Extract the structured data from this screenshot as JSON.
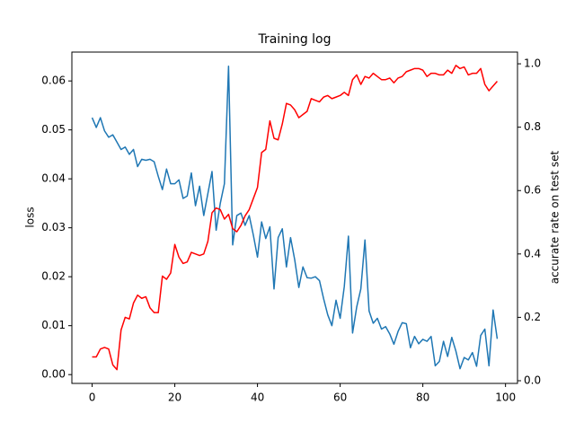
{
  "chart_data": {
    "type": "line",
    "title": "Training log",
    "ylabel": "loss",
    "y2label": "accurate rate on test set",
    "x": [
      0,
      1,
      2,
      3,
      4,
      5,
      6,
      7,
      8,
      9,
      10,
      11,
      12,
      13,
      14,
      15,
      16,
      17,
      18,
      19,
      20,
      21,
      22,
      23,
      24,
      25,
      26,
      27,
      28,
      29,
      30,
      31,
      32,
      33,
      34,
      35,
      36,
      37,
      38,
      39,
      40,
      41,
      42,
      43,
      44,
      45,
      46,
      47,
      48,
      49,
      50,
      51,
      52,
      53,
      54,
      55,
      56,
      57,
      58,
      59,
      60,
      61,
      62,
      63,
      64,
      65,
      66,
      67,
      68,
      69,
      70,
      71,
      72,
      73,
      74,
      75,
      76,
      77,
      78,
      79,
      80,
      81,
      82,
      83,
      84,
      85,
      86,
      87,
      88,
      89,
      90,
      91,
      92,
      93,
      94,
      95,
      96,
      97,
      98
    ],
    "series": [
      {
        "color": "#1f77b4",
        "axis": "y",
        "values": [
          0.0525,
          0.0505,
          0.0525,
          0.0498,
          0.0485,
          0.049,
          0.0475,
          0.046,
          0.0465,
          0.045,
          0.046,
          0.0425,
          0.044,
          0.0438,
          0.044,
          0.0435,
          0.0405,
          0.0378,
          0.042,
          0.039,
          0.039,
          0.0398,
          0.036,
          0.0365,
          0.0412,
          0.0345,
          0.0385,
          0.0325,
          0.037,
          0.0415,
          0.0295,
          0.035,
          0.039,
          0.063,
          0.0265,
          0.0325,
          0.033,
          0.0305,
          0.0325,
          0.0285,
          0.024,
          0.0312,
          0.0278,
          0.0302,
          0.0175,
          0.028,
          0.0298,
          0.022,
          0.028,
          0.0235,
          0.0178,
          0.022,
          0.0198,
          0.0197,
          0.02,
          0.0192,
          0.0155,
          0.0122,
          0.01,
          0.0152,
          0.0115,
          0.018,
          0.0283,
          0.0085,
          0.0138,
          0.0175,
          0.0275,
          0.013,
          0.0105,
          0.0115,
          0.0093,
          0.0098,
          0.0083,
          0.0062,
          0.0088,
          0.0106,
          0.0104,
          0.0055,
          0.0078,
          0.0063,
          0.0072,
          0.0068,
          0.0078,
          0.0018,
          0.0027,
          0.0068,
          0.0037,
          0.0076,
          0.0048,
          0.0012,
          0.0035,
          0.003,
          0.0045,
          0.0017,
          0.008,
          0.0093,
          0.0018,
          0.0132,
          0.0073
        ]
      },
      {
        "color": "#ff0000",
        "axis": "y2",
        "values": [
          0.075,
          0.075,
          0.1,
          0.105,
          0.1,
          0.05,
          0.035,
          0.16,
          0.2,
          0.195,
          0.245,
          0.27,
          0.26,
          0.265,
          0.23,
          0.215,
          0.215,
          0.33,
          0.32,
          0.34,
          0.43,
          0.39,
          0.37,
          0.375,
          0.405,
          0.4,
          0.395,
          0.4,
          0.44,
          0.53,
          0.545,
          0.54,
          0.51,
          0.525,
          0.48,
          0.47,
          0.49,
          0.52,
          0.54,
          0.575,
          0.61,
          0.72,
          0.73,
          0.82,
          0.765,
          0.76,
          0.81,
          0.875,
          0.87,
          0.855,
          0.83,
          0.84,
          0.85,
          0.89,
          0.885,
          0.88,
          0.895,
          0.9,
          0.89,
          0.895,
          0.9,
          0.91,
          0.9,
          0.95,
          0.965,
          0.935,
          0.96,
          0.955,
          0.97,
          0.96,
          0.95,
          0.95,
          0.955,
          0.94,
          0.955,
          0.96,
          0.975,
          0.98,
          0.985,
          0.985,
          0.98,
          0.96,
          0.97,
          0.97,
          0.965,
          0.965,
          0.98,
          0.97,
          0.995,
          0.985,
          0.99,
          0.965,
          0.97,
          0.97,
          0.985,
          0.935,
          0.915,
          0.93,
          0.945
        ]
      }
    ],
    "xlim": [
      -4.9,
      102.9
    ],
    "xticks": [
      0,
      20,
      40,
      60,
      80,
      100
    ],
    "ylim": [
      -0.0018,
      0.0659
    ],
    "yticks": [
      {
        "value": 0,
        "label": "0.00"
      },
      0.01,
      0.02,
      0.03,
      0.04,
      0.05,
      0.06
    ],
    "y2lim": [
      -0.0085,
      1.037
    ],
    "y2ticks": [
      {
        "value": 0,
        "label": "0.0"
      },
      0.2,
      0.4,
      0.6,
      0.8,
      {
        "value": 1,
        "label": "1.0"
      }
    ],
    "grid": false
  }
}
